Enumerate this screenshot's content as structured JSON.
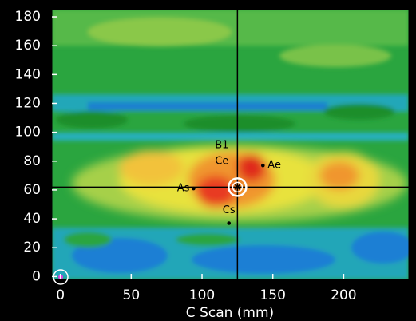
{
  "chart_data": {
    "type": "cscan",
    "x_label": "C Scan (mm)",
    "xlim": [
      -6,
      246
    ],
    "ylim": [
      -2,
      185
    ],
    "xticks": [
      0,
      50,
      100,
      150,
      200
    ],
    "yticks": [
      0,
      20,
      40,
      60,
      80,
      100,
      120,
      140,
      160,
      180
    ],
    "crosshair": {
      "x": 125,
      "y": 62
    },
    "points": [
      {
        "label": "As",
        "x": 94,
        "y": 61
      },
      {
        "label": "Ae",
        "x": 143,
        "y": 77
      },
      {
        "label": "Cs",
        "x": 119,
        "y": 37
      }
    ],
    "text_annotations": [
      {
        "label": "B1",
        "x": 114,
        "y": 91
      },
      {
        "label": "Ce",
        "x": 114,
        "y": 80
      }
    ]
  }
}
